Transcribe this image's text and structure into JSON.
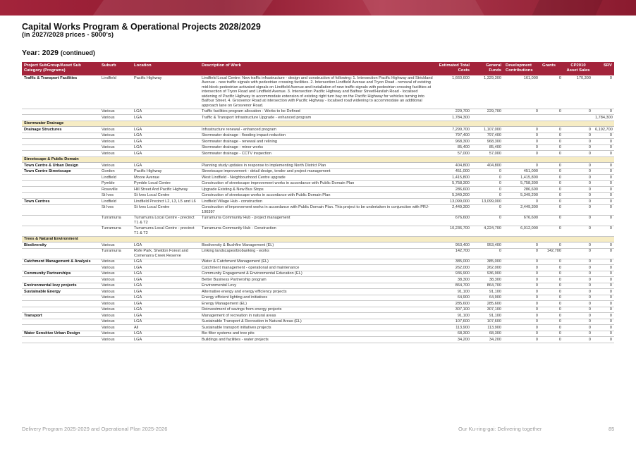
{
  "header": {
    "title": "Capital Works Program & Operational Projects 2028/2029",
    "subtitle": "(in 2027/2028 prices - $000’s)",
    "section": "Year: 2029",
    "section_suffix": "(continued)"
  },
  "table": {
    "columns": [
      "Project SubGroup/Asset Sub Category (Programs)",
      "Suburb",
      "Location",
      "Description of Work",
      "Estimated Total Costs",
      "General Funds",
      "Development Contributions",
      "Grants",
      "CP2010 Asset Sales",
      "SRV"
    ],
    "rows": [
      {
        "type": "row",
        "group": "Traffic & Transport Facilities",
        "suburb": "Lindfield",
        "location": "Pacific Highway",
        "desc": "Lindfield Local Centre: New traffic infrastructure - design and construction of following: 1. Intersection Pacific Highway and Strickland Avenue - new traffic signals with pedestrian crossing facilities. 2. Intersection Lindfield Avenue and Tryon Road - removal of existing mid-block pedestrian activated signals on Lindfield Avenue and installation of new traffic signals with pedestrian crossing facilities at intersection of Tryon Road and Lindfield Avenue. 3. Intersection Pacific Highway and Balfour Street/Havilah Road - localised widening of Pacific Highway to accommodate extension of existing right turn bay on the Pacific Highway for vehicles turning into Balfour Street. 4. Grosvenor Road at intersection with Pacific Highway - localised road widening to accommodate an additional approach lane on Grosvenor Road.",
        "est": "1,660,600",
        "gen": "1,329,300",
        "dev": "161,000",
        "grants": "0",
        "cp": "170,300",
        "srv": "0"
      },
      {
        "type": "row",
        "group": "",
        "suburb": "Various",
        "location": "LGA",
        "desc": "Traffic facilities program allocation - Works to be Defined",
        "est": "229,700",
        "gen": "229,700",
        "dev": "0",
        "grants": "0",
        "cp": "0",
        "srv": "0"
      },
      {
        "type": "row",
        "group": "",
        "suburb": "Various",
        "location": "LGA",
        "desc": "Traffic & Transport Infrastructure Upgrade - enhanced program",
        "est": "1,784,300",
        "gen": "",
        "dev": "",
        "grants": "",
        "cp": "",
        "srv": "1,784,300"
      },
      {
        "type": "cat",
        "label": "Stormwater Drainage"
      },
      {
        "type": "row",
        "group": "Drainage Structures",
        "suburb": "Various",
        "location": "LGA",
        "desc": "Infrastructure renewal - enhanced program",
        "est": "7,299,700",
        "gen": "1,107,000",
        "dev": "0",
        "grants": "0",
        "cp": "0",
        "srv": "6,192,700"
      },
      {
        "type": "row",
        "group": "",
        "suburb": "Various",
        "location": "LGA",
        "desc": "Stormwater drainage - flooding impact reduction",
        "est": "797,400",
        "gen": "797,400",
        "dev": "0",
        "grants": "0",
        "cp": "0",
        "srv": "0"
      },
      {
        "type": "row",
        "group": "",
        "suburb": "Various",
        "location": "LGA",
        "desc": "Stormwater drainage - renewal and relining",
        "est": "968,300",
        "gen": "968,300",
        "dev": "0",
        "grants": "0",
        "cp": "0",
        "srv": "0"
      },
      {
        "type": "row",
        "group": "",
        "suburb": "Various",
        "location": "LGA",
        "desc": "Stormwater drainage - minor works",
        "est": "85,400",
        "gen": "85,400",
        "dev": "0",
        "grants": "0",
        "cp": "0",
        "srv": "0"
      },
      {
        "type": "row",
        "group": "",
        "suburb": "Various",
        "location": "LGA",
        "desc": "Stormwater drainage - CCTV inspection",
        "est": "57,000",
        "gen": "57,000",
        "dev": "0",
        "grants": "0",
        "cp": "0",
        "srv": "0"
      },
      {
        "type": "cat",
        "label": "Streetscape & Public Domain"
      },
      {
        "type": "row",
        "group": "Town Centre & Urban Design",
        "suburb": "Various",
        "location": "LGA",
        "desc": "Planning study updates in response to implementing North District Plan",
        "est": "404,800",
        "gen": "404,800",
        "dev": "0",
        "grants": "0",
        "cp": "0",
        "srv": "0"
      },
      {
        "type": "row",
        "group": "Town Centre Streetscape",
        "suburb": "Gordon",
        "location": "Pacific Highway",
        "desc": "Streetscape improvement - detail design, tender and project management",
        "est": "451,000",
        "gen": "0",
        "dev": "451,000",
        "grants": "0",
        "cp": "0",
        "srv": "0"
      },
      {
        "type": "row",
        "group": "",
        "suburb": "Lindfield",
        "location": "Moore Avenue",
        "desc": "West Lindfield - Neighbourhood Centre upgrade",
        "est": "1,415,800",
        "gen": "0",
        "dev": "1,415,800",
        "grants": "0",
        "cp": "0",
        "srv": "0"
      },
      {
        "type": "row",
        "group": "",
        "suburb": "Pymble",
        "location": "Pymble Local Centre",
        "desc": "Construction of streetscape improvement works in accordance with Public Domain Plan",
        "est": "5,758,300",
        "gen": "0",
        "dev": "5,758,300",
        "grants": "0",
        "cp": "0",
        "srv": "0"
      },
      {
        "type": "row",
        "group": "",
        "suburb": "Roseville",
        "location": "Hill Street And Pacific Highway",
        "desc": "Upgrade Existing & New Bus Stops",
        "est": "286,600",
        "gen": "0",
        "dev": "286,600",
        "grants": "0",
        "cp": "0",
        "srv": "0"
      },
      {
        "type": "row",
        "group": "",
        "suburb": "St Ives",
        "location": "St Ives Local Centre",
        "desc": "Construction of streetscape works in accordance with Public Domain Plan",
        "est": "5,349,200",
        "gen": "0",
        "dev": "5,349,200",
        "grants": "0",
        "cp": "0",
        "srv": "0"
      },
      {
        "type": "row",
        "group": "Town Centres",
        "suburb": "Lindfield",
        "location": "Lindfield Precinct L2, L3, L5 and L6",
        "desc": "Lindfield Village Hub - construction",
        "est": "13,099,000",
        "gen": "13,099,000",
        "dev": "0",
        "grants": "0",
        "cp": "0",
        "srv": "0"
      },
      {
        "type": "row",
        "group": "",
        "suburb": "St Ives",
        "location": "St Ives Local Centre",
        "desc": "Construction of improvement works in accordance with Public Domain Plan. This project to be undertaken in conjunction with PRJ-100397",
        "est": "2,449,300",
        "gen": "0",
        "dev": "2,449,300",
        "grants": "0",
        "cp": "0",
        "srv": "0"
      },
      {
        "type": "row",
        "group": "",
        "suburb": "Turramurra",
        "location": "Turramurra Local Centre - precinct T1 & T2",
        "desc": "Turramurra Community Hub - project management",
        "est": "676,600",
        "gen": "0",
        "dev": "676,600",
        "grants": "0",
        "cp": "0",
        "srv": "0"
      },
      {
        "type": "row",
        "group": "",
        "suburb": "Turramurra",
        "location": "Turramurra Local Centre - precinct T1 & T2",
        "desc": "Turramurra Community Hub - Construction",
        "est": "10,236,700",
        "gen": "4,224,700",
        "dev": "6,012,000",
        "grants": "0",
        "cp": "0",
        "srv": "0"
      },
      {
        "type": "cat",
        "label": "Trees & Natural Environment"
      },
      {
        "type": "row",
        "group": "Biodiversity",
        "suburb": "Various",
        "location": "LGA",
        "desc": "Biodiversity & Bushfire Management (EL)",
        "est": "953,400",
        "gen": "953,400",
        "dev": "0",
        "grants": "0",
        "cp": "0",
        "srv": "0"
      },
      {
        "type": "row",
        "group": "",
        "suburb": "Turramurra",
        "location": "Rofe Park, Sheldon Forest and Comenarra Creek Reserve",
        "desc": "Linking landscapes/biobanking - works",
        "est": "142,700",
        "gen": "0",
        "dev": "0",
        "grants": "142,700",
        "cp": "0",
        "srv": "0"
      },
      {
        "type": "row",
        "group": "Catchment Management & Analysis",
        "suburb": "Various",
        "location": "LGA",
        "desc": "Water & Catchment Management (EL)",
        "est": "385,000",
        "gen": "385,000",
        "dev": "0",
        "grants": "0",
        "cp": "0",
        "srv": "0"
      },
      {
        "type": "row",
        "group": "",
        "suburb": "Various",
        "location": "LGA",
        "desc": "Catchment management - operational and maintenance",
        "est": "262,000",
        "gen": "262,000",
        "dev": "0",
        "grants": "0",
        "cp": "0",
        "srv": "0"
      },
      {
        "type": "row",
        "group": "Community Partnerships",
        "suburb": "Various",
        "location": "LGA",
        "desc": "Community Engagement & Environmental Education (EL)",
        "est": "936,900",
        "gen": "936,900",
        "dev": "0",
        "grants": "0",
        "cp": "0",
        "srv": "0"
      },
      {
        "type": "row",
        "group": "",
        "suburb": "Various",
        "location": "LGA",
        "desc": "Better Business Partnership program",
        "est": "38,300",
        "gen": "38,300",
        "dev": "0",
        "grants": "0",
        "cp": "0",
        "srv": "0"
      },
      {
        "type": "row",
        "group": "Environmental levy projects",
        "suburb": "Various",
        "location": "LGA",
        "desc": "Environmental Levy",
        "est": "864,700",
        "gen": "864,700",
        "dev": "0",
        "grants": "0",
        "cp": "0",
        "srv": "0"
      },
      {
        "type": "row",
        "group": "Sustainable Energy",
        "suburb": "Various",
        "location": "LGA",
        "desc": "Alternative energy and energy efficiency projects",
        "est": "91,100",
        "gen": "91,100",
        "dev": "0",
        "grants": "0",
        "cp": "0",
        "srv": "0"
      },
      {
        "type": "row",
        "group": "",
        "suburb": "Various",
        "location": "LGA",
        "desc": "Energy efficient lighting and initiatives",
        "est": "64,900",
        "gen": "64,900",
        "dev": "0",
        "grants": "0",
        "cp": "0",
        "srv": "0"
      },
      {
        "type": "row",
        "group": "",
        "suburb": "Various",
        "location": "LGA",
        "desc": "Energy Management (EL)",
        "est": "285,600",
        "gen": "285,600",
        "dev": "0",
        "grants": "0",
        "cp": "0",
        "srv": "0"
      },
      {
        "type": "row",
        "group": "",
        "suburb": "Various",
        "location": "LGA",
        "desc": "Reinvestment of savings from energy projects",
        "est": "307,100",
        "gen": "307,100",
        "dev": "0",
        "grants": "0",
        "cp": "0",
        "srv": "0"
      },
      {
        "type": "row",
        "group": "Transport",
        "suburb": "Various",
        "location": "LGA",
        "desc": "Management of recreation in natural areas",
        "est": "91,100",
        "gen": "91,100",
        "dev": "0",
        "grants": "0",
        "cp": "0",
        "srv": "0"
      },
      {
        "type": "row",
        "group": "",
        "suburb": "Various",
        "location": "LGA",
        "desc": "Sustainable Transport & Recreation in Natural Areas (EL)",
        "est": "107,600",
        "gen": "107,600",
        "dev": "0",
        "grants": "0",
        "cp": "0",
        "srv": "0"
      },
      {
        "type": "row",
        "group": "",
        "suburb": "Various",
        "location": "All",
        "desc": "Sustainable transport initiatives projects",
        "est": "113,900",
        "gen": "113,900",
        "dev": "0",
        "grants": "0",
        "cp": "0",
        "srv": "0"
      },
      {
        "type": "row",
        "group": "Water Sensitive Urban Design",
        "suburb": "Various",
        "location": "LGA",
        "desc": "Bio filter systems and tree pits",
        "est": "68,300",
        "gen": "68,300",
        "dev": "0",
        "grants": "0",
        "cp": "0",
        "srv": "0"
      },
      {
        "type": "row",
        "group": "",
        "suburb": "Various",
        "location": "LGA",
        "desc": "Buildings and facilities - water projects",
        "est": "34,200",
        "gen": "34,200",
        "dev": "0",
        "grants": "0",
        "cp": "0",
        "srv": "0"
      }
    ]
  },
  "footer": {
    "left": "Delivery Program 2025-2029 and Operational Plan 2025-2026",
    "right": "Our Ku-ring-gai: Delivering together",
    "page": "85"
  }
}
